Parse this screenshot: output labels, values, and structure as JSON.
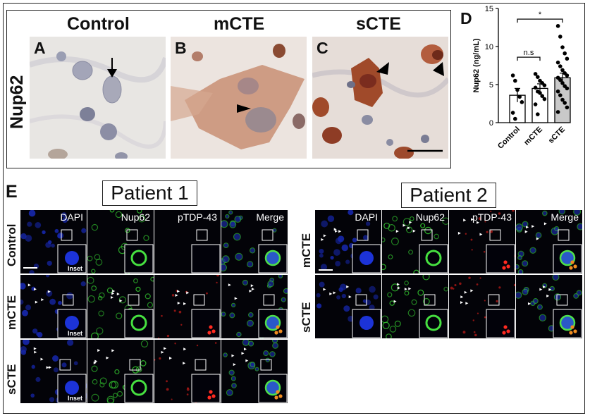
{
  "panels": {
    "a": "A",
    "b": "B",
    "c": "C",
    "d": "D",
    "e": "E"
  },
  "ihc": {
    "marker": "Nup62",
    "columns": [
      "Control",
      "mCTE",
      "sCTE"
    ]
  },
  "fluorescence": {
    "patients": [
      "Patient 1",
      "Patient 2"
    ],
    "channels": [
      "DAPI",
      "Nup62",
      "pTDP-43",
      "Merge"
    ],
    "patient1_rows": [
      "Control",
      "mCTE",
      "sCTE"
    ],
    "patient2_rows": [
      "mCTE",
      "sCTE"
    ],
    "inset_label": "Inset"
  },
  "colors": {
    "ihc_background": "#e9e6e2",
    "dapi": "#1a2bd0",
    "nup62": "#3fd13a",
    "ptdp": "#e0261f",
    "bar_control": "#ffffff",
    "bar_mcte": "#ffffff",
    "bar_scte": "#c9c9c9"
  },
  "chart_data": {
    "type": "bar",
    "categories": [
      "Control",
      "mCTE",
      "sCTE"
    ],
    "values": [
      3.6,
      4.5,
      5.9
    ],
    "errors": [
      0.9,
      0.6,
      0.6
    ],
    "points": [
      [
        6.2,
        5.5,
        4.3,
        3.4,
        2.7,
        1.3,
        0.5
      ],
      [
        6.4,
        6.0,
        5.5,
        5.2,
        4.9,
        4.6,
        4.1,
        3.9,
        3.5,
        3.1,
        2.4,
        1.1
      ],
      [
        12.7,
        11.3,
        9.9,
        9.1,
        8.4,
        7.9,
        7.4,
        6.9,
        6.5,
        6.2,
        5.9,
        5.6,
        5.2,
        4.8,
        4.5,
        4.1,
        3.6,
        3.0,
        2.6,
        2.0,
        1.4
      ]
    ],
    "ylabel": "Nup62 (ng/mL)",
    "ylim": [
      0,
      15
    ],
    "yticks": [
      0,
      5,
      10,
      15
    ],
    "annotations": {
      "ns": "n.s",
      "sig": "*"
    }
  }
}
